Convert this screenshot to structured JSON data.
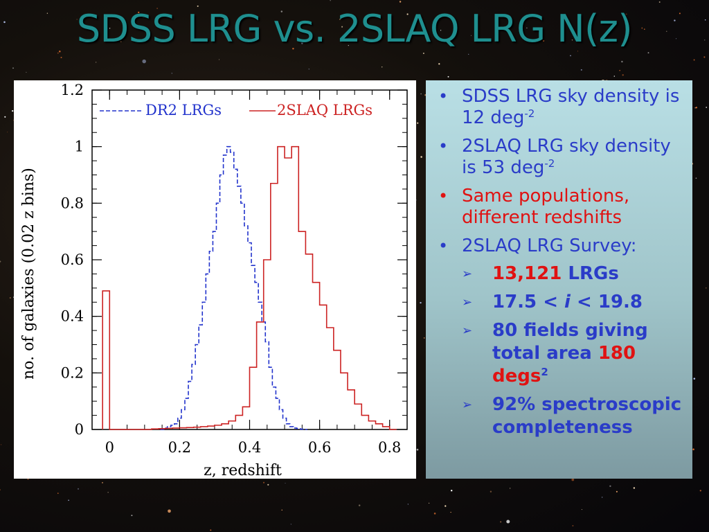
{
  "slide": {
    "title": "SDSS LRG vs. 2SLAQ LRG N(z)",
    "colors": {
      "title": "#1f8f8f",
      "bullet_blue": "#2a3cc8",
      "bullet_red": "#e01212"
    }
  },
  "bullets": [
    {
      "text": "SDSS LRG sky density is 12 deg",
      "sup": "-2",
      "color": "blue"
    },
    {
      "text": "2SLAQ LRG sky density is 53 deg",
      "sup": "-2",
      "color": "blue"
    },
    {
      "text": "Same populations, different redshifts",
      "color": "red"
    },
    {
      "text": "2SLAQ LRG Survey:",
      "color": "blue"
    }
  ],
  "sub_bullets": {
    "b1_num": "13,121",
    "b1_rest": " LRGs",
    "b2_pre": "17.5 < ",
    "b2_i": "i",
    "b2_post": " < 19.8",
    "b3_pre": "80 fields giving total area ",
    "b3_num": "180",
    "b3_unit": "degs",
    "b3_sup": "2",
    "b4": "92% spectroscopic completeness"
  },
  "chart_data": {
    "type": "line",
    "title": "",
    "xlabel": "z, redshift",
    "ylabel": "no. of galaxies (0.02 z bins)",
    "xlim": [
      -0.05,
      0.85
    ],
    "ylim": [
      0,
      1.2
    ],
    "x_ticks": [
      "0",
      "0.2",
      "0.4",
      "0.6",
      "0.8"
    ],
    "y_ticks": [
      "0",
      "0.2",
      "0.4",
      "0.6",
      "0.8",
      "1",
      "1.2"
    ],
    "legend": "top",
    "series": [
      {
        "name": "DR2 LRGs",
        "style": "dashed",
        "color": "#2233cc",
        "x": [
          0.15,
          0.16,
          0.17,
          0.18,
          0.19,
          0.2,
          0.21,
          0.22,
          0.23,
          0.24,
          0.25,
          0.26,
          0.27,
          0.28,
          0.29,
          0.3,
          0.31,
          0.32,
          0.33,
          0.34,
          0.35,
          0.36,
          0.37,
          0.38,
          0.39,
          0.4,
          0.41,
          0.42,
          0.43,
          0.44,
          0.45,
          0.46,
          0.47,
          0.48,
          0.49,
          0.5,
          0.51,
          0.52,
          0.53,
          0.54,
          0.55,
          0.56
        ],
        "y": [
          0.0,
          0.005,
          0.01,
          0.015,
          0.02,
          0.04,
          0.07,
          0.11,
          0.17,
          0.23,
          0.3,
          0.37,
          0.45,
          0.55,
          0.63,
          0.7,
          0.8,
          0.9,
          0.97,
          1.0,
          0.98,
          0.92,
          0.86,
          0.8,
          0.72,
          0.66,
          0.58,
          0.52,
          0.45,
          0.38,
          0.31,
          0.22,
          0.15,
          0.11,
          0.07,
          0.04,
          0.02,
          0.01,
          0.005,
          0.003,
          0.001,
          0.0
        ]
      },
      {
        "name": "2SLAQ LRGs",
        "style": "solid",
        "color": "#cc2222",
        "x": [
          -0.01,
          0.01,
          0.03,
          0.05,
          0.07,
          0.09,
          0.11,
          0.13,
          0.15,
          0.17,
          0.19,
          0.21,
          0.23,
          0.25,
          0.27,
          0.29,
          0.31,
          0.33,
          0.35,
          0.37,
          0.39,
          0.41,
          0.43,
          0.45,
          0.47,
          0.49,
          0.51,
          0.53,
          0.55,
          0.57,
          0.59,
          0.61,
          0.63,
          0.65,
          0.67,
          0.69,
          0.71,
          0.73,
          0.75,
          0.77,
          0.79,
          0.81
        ],
        "y": [
          0.49,
          0.0,
          0.0,
          0.0,
          0.0,
          0.0,
          0.0,
          0.002,
          0.003,
          0.004,
          0.005,
          0.006,
          0.007,
          0.008,
          0.01,
          0.012,
          0.015,
          0.02,
          0.03,
          0.05,
          0.08,
          0.22,
          0.38,
          0.6,
          0.87,
          1.0,
          0.96,
          1.0,
          0.7,
          0.62,
          0.52,
          0.44,
          0.36,
          0.28,
          0.2,
          0.14,
          0.09,
          0.05,
          0.03,
          0.02,
          0.01,
          0.0
        ]
      }
    ]
  }
}
